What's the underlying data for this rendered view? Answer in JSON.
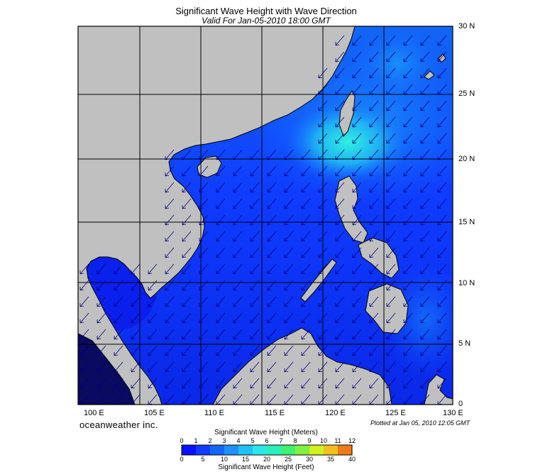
{
  "title": "Significant Wave Height with Wave Direction",
  "subtitle": "Valid For Jan-05-2010 18:00 GMT",
  "brand": "oceanweather inc.",
  "plotted": "Plotted at Jan 05, 2010 12:05 GMT",
  "lat_labels": [
    "30 N",
    "25 N",
    "20 N",
    "15 N",
    "10 N",
    "5 N",
    "0"
  ],
  "lon_labels": [
    "100 E",
    "105 E",
    "110 E",
    "115 E",
    "120 E",
    "125 E",
    "130 E"
  ],
  "colorbar": {
    "title_top": "Significant Wave Height (Meters)",
    "title_bottom": "Significant Wave Height (Feet)",
    "meters": [
      "0",
      "1",
      "2",
      "3",
      "4",
      "5",
      "6",
      "7",
      "8",
      "9",
      "10",
      "11",
      "12"
    ],
    "feet": [
      "0",
      "5",
      "10",
      "15",
      "20",
      "25",
      "30",
      "35",
      "40"
    ],
    "colors": [
      "#0a10ff",
      "#0f3cff",
      "#1266f4",
      "#1f90f8",
      "#22c0f2",
      "#2ae8ea",
      "#28f0b8",
      "#40f070",
      "#80f040",
      "#d0f020",
      "#f0c020",
      "#f07a18",
      "#e81818"
    ]
  },
  "colors": {
    "land": "#c0c0c0",
    "sea_low": "#0a28e8",
    "sea_mid": "#1464ff",
    "sea_high": "#20e0f0",
    "grid": "#000000",
    "arrow": "#000080"
  }
}
